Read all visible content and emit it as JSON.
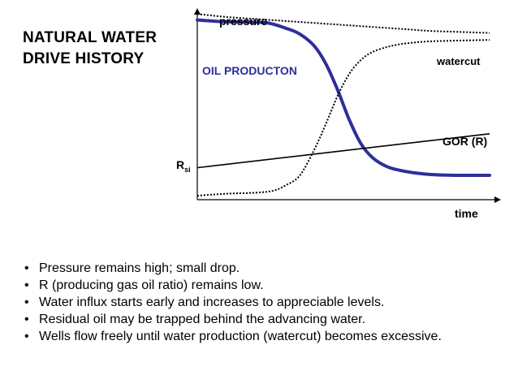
{
  "title_lines": [
    "NATURAL WATER",
    "DRIVE HISTORY"
  ],
  "chart_data": {
    "type": "line",
    "xlabel": "time",
    "ylabel": "",
    "series": [
      {
        "name": "pressure",
        "style": "dotted",
        "color": "#000000",
        "x": [
          0,
          0.1,
          0.2,
          0.3,
          0.4,
          0.5,
          0.6,
          0.7,
          0.8,
          0.9,
          1.0
        ],
        "y": [
          0.93,
          0.915,
          0.905,
          0.895,
          0.885,
          0.875,
          0.865,
          0.855,
          0.845,
          0.84,
          0.835
        ]
      },
      {
        "name": "OIL PRODUCTON",
        "style": "solid-thick",
        "color": "#2f2f9a",
        "x": [
          0,
          0.08,
          0.16,
          0.24,
          0.3,
          0.35,
          0.4,
          0.44,
          0.48,
          0.52,
          0.56,
          0.6,
          0.65,
          0.7,
          0.75,
          0.8,
          0.88,
          0.95,
          1.0
        ],
        "y": [
          0.9,
          0.892,
          0.89,
          0.885,
          0.86,
          0.83,
          0.77,
          0.68,
          0.55,
          0.4,
          0.28,
          0.21,
          0.165,
          0.145,
          0.133,
          0.126,
          0.122,
          0.122,
          0.122
        ]
      },
      {
        "name": "watercut",
        "style": "dotted",
        "color": "#000000",
        "x": [
          0,
          0.1,
          0.2,
          0.26,
          0.3,
          0.35,
          0.4,
          0.44,
          0.48,
          0.52,
          0.56,
          0.6,
          0.65,
          0.7,
          0.75,
          0.8,
          0.9,
          1.0
        ],
        "y": [
          0.02,
          0.03,
          0.035,
          0.045,
          0.07,
          0.12,
          0.25,
          0.38,
          0.52,
          0.63,
          0.7,
          0.74,
          0.765,
          0.78,
          0.788,
          0.793,
          0.797,
          0.8
        ]
      },
      {
        "name": "GOR (R)",
        "style": "solid",
        "color": "#000000",
        "x": [
          0,
          1.0
        ],
        "y": [
          0.16,
          0.33
        ]
      }
    ],
    "annotations": [
      "pressure",
      "OIL PRODUCTON",
      "watercut",
      "GOR (R)",
      "R",
      "si"
    ],
    "rsi_label": {
      "main": "R",
      "sub": "si"
    },
    "grid": false
  },
  "bullets": [
    "Pressure remains high; small drop.",
    "R (producing gas oil ratio) remains low.",
    "Water influx starts early and increases to appreciable levels.",
    "Residual oil may be trapped behind the advancing water.",
    "Wells flow freely until water production (watercut) becomes excessive."
  ],
  "colors": {
    "oil": "#2f2f9a",
    "axis": "#000000"
  }
}
